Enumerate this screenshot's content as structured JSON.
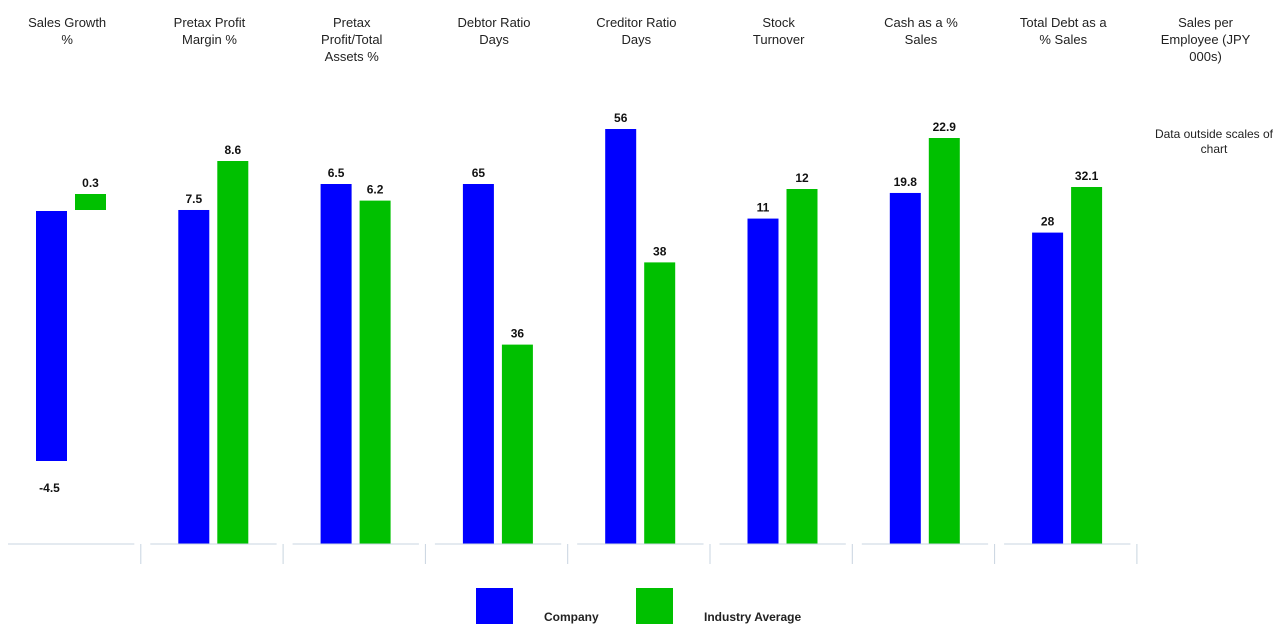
{
  "chart_data": {
    "type": "bar",
    "series": [
      {
        "name": "Company",
        "color": "#0000ff"
      },
      {
        "name": "Industry Average",
        "color": "#00c000"
      }
    ],
    "panels": [
      {
        "title": [
          "Sales Growth",
          "%"
        ],
        "company": -4.5,
        "industry": 0.3,
        "company_label": "-4.5",
        "industry_label": "0.3"
      },
      {
        "title": [
          "Pretax Profit",
          "Margin %"
        ],
        "company": 7.5,
        "industry": 8.6,
        "company_label": "7.5",
        "industry_label": "8.6"
      },
      {
        "title": [
          "Pretax",
          "Profit/Total",
          "Assets %"
        ],
        "company": 6.5,
        "industry": 6.2,
        "company_label": "6.5",
        "industry_label": "6.2"
      },
      {
        "title": [
          "Debtor Ratio",
          "Days"
        ],
        "company": 65,
        "industry": 36,
        "company_label": "65",
        "industry_label": "36"
      },
      {
        "title": [
          "Creditor Ratio",
          "Days"
        ],
        "company": 56,
        "industry": 38,
        "company_label": "56",
        "industry_label": "38"
      },
      {
        "title": [
          "Stock",
          "Turnover"
        ],
        "company": 11,
        "industry": 12,
        "company_label": "11",
        "industry_label": "12"
      },
      {
        "title": [
          "Cash as a %",
          "Sales"
        ],
        "company": 19.8,
        "industry": 22.9,
        "company_label": "19.8",
        "industry_label": "22.9"
      },
      {
        "title": [
          "Total Debt as a",
          "% Sales"
        ],
        "company": 28,
        "industry": 32.1,
        "company_label": "28",
        "industry_label": "32.1"
      },
      {
        "title": [
          "Sales per",
          "Employee (JPY",
          "000s)"
        ],
        "company": null,
        "industry": null,
        "company_label": "",
        "industry_label": ""
      }
    ],
    "note": [
      "Data outside scales of",
      "chart"
    ],
    "legend_position": "bottom-center",
    "grid": false
  }
}
